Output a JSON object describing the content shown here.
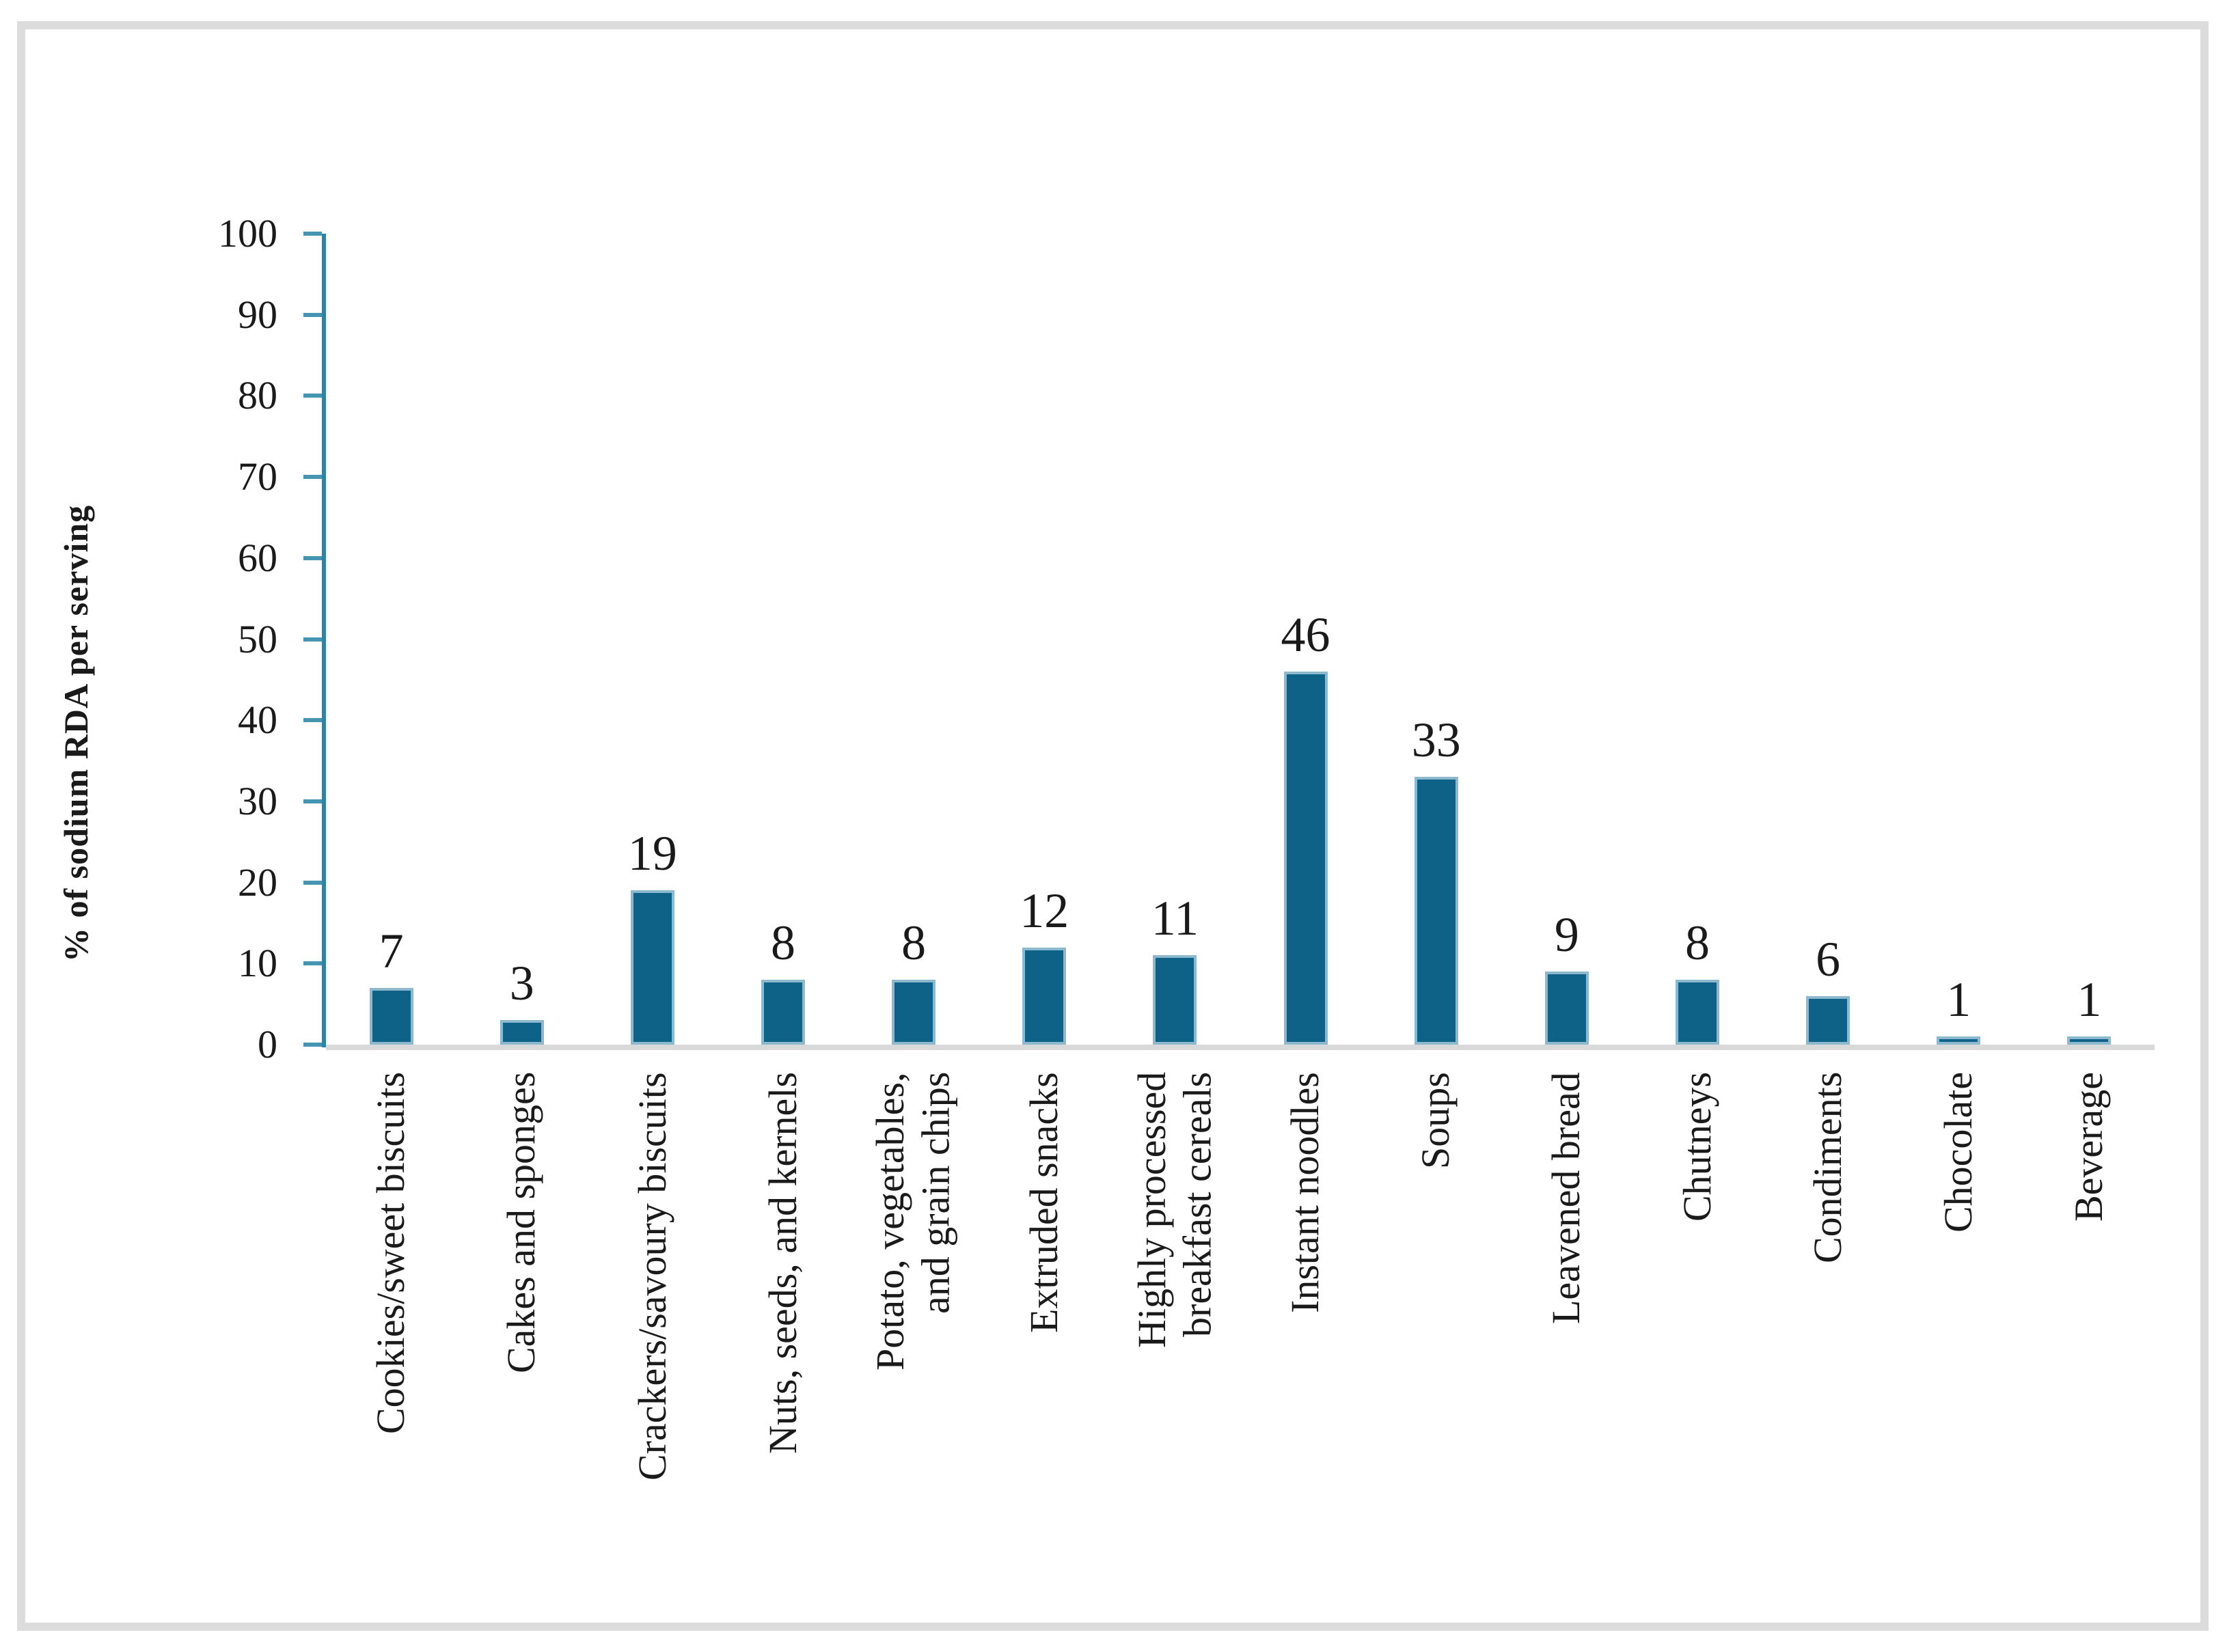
{
  "figure": {
    "background_color": "#ffffff",
    "border_color": "#dcdcdc"
  },
  "chart_data": {
    "type": "bar",
    "title": "",
    "xlabel": "",
    "ylabel": "% of sodium RDA per serving",
    "ylim": [
      0,
      100
    ],
    "yticks": [
      0,
      10,
      20,
      30,
      40,
      50,
      60,
      70,
      80,
      90,
      100
    ],
    "grid": false,
    "legend": null,
    "data_labels_shown": true,
    "categories": [
      "Cookies/sweet biscuits",
      "Cakes and sponges",
      "Crackers/savoury biscuits",
      "Nuts, seeds, and kernels",
      "Potato, vegetables,\nand grain chips",
      "Extruded snacks",
      "Highly processed\nbreakfast cereals",
      "Instant noodles",
      "Soups",
      "Leavened bread",
      "Chutneys",
      "Condiments",
      "Chocolate",
      "Beverage"
    ],
    "values": [
      7,
      3,
      19,
      8,
      8,
      12,
      11,
      46,
      33,
      9,
      8,
      6,
      1,
      1
    ],
    "colors": {
      "bar_fill": "#0e6187",
      "bar_border": "#8cb9cd",
      "axis_line": "#2b83a6",
      "tick_mark": "#4595b2",
      "x_baseline": "#d9d9d9",
      "text": "#1a1a1a"
    }
  }
}
